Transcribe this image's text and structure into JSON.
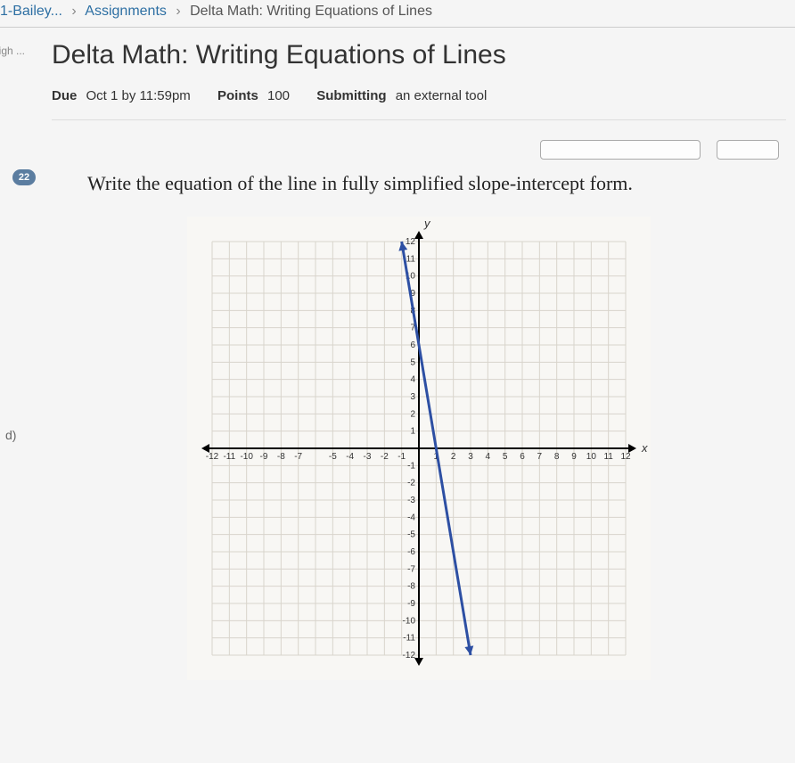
{
  "breadcrumb": {
    "course": "1-Bailey...",
    "section": "Assignments",
    "page": "Delta Math: Writing Equations of Lines"
  },
  "sidebar_top_label": "High ...",
  "badge_count": "22",
  "side_letter": "d)",
  "title": "Delta Math: Writing Equations of Lines",
  "meta": {
    "due_label": "Due",
    "due_value": "Oct 1 by 11:59pm",
    "points_label": "Points",
    "points_value": "100",
    "submitting_label": "Submitting",
    "submitting_value": "an external tool"
  },
  "prompt": "Write the equation of the line in fully simplified slope-intercept form.",
  "chart": {
    "type": "line",
    "x_axis_label": "x",
    "y_axis_label": "y",
    "xlim": [
      -12,
      12
    ],
    "ylim": [
      -12,
      12
    ],
    "tick_step": 1,
    "grid_color": "#d8d4cc",
    "axis_color": "#000000",
    "line_color": "#2d4fa3",
    "background_color": "#f8f7f4",
    "line_points": [
      [
        -1,
        12
      ],
      [
        3,
        -12
      ]
    ],
    "slope": -6,
    "intercept": 6,
    "x_tick_labels_neg": [
      "-12",
      "-11",
      "-10",
      "-9",
      "-8",
      "-7",
      "",
      "-5",
      "-4",
      "-3",
      "-2",
      "-1"
    ],
    "x_tick_labels_pos": [
      "1",
      "2",
      "3",
      "4",
      "5",
      "6",
      "7",
      "8",
      "9",
      "10",
      "11",
      "12"
    ],
    "y_tick_labels_pos": [
      "1",
      "2",
      "3",
      "4",
      "5",
      "6",
      "7",
      "8",
      "9",
      "10",
      "11",
      "12"
    ],
    "y_tick_labels_neg": [
      "-1",
      "-2",
      "-3",
      "-4",
      "-5",
      "-6",
      "-7",
      "-8",
      "-9",
      "-10",
      "-11",
      "-12"
    ]
  }
}
